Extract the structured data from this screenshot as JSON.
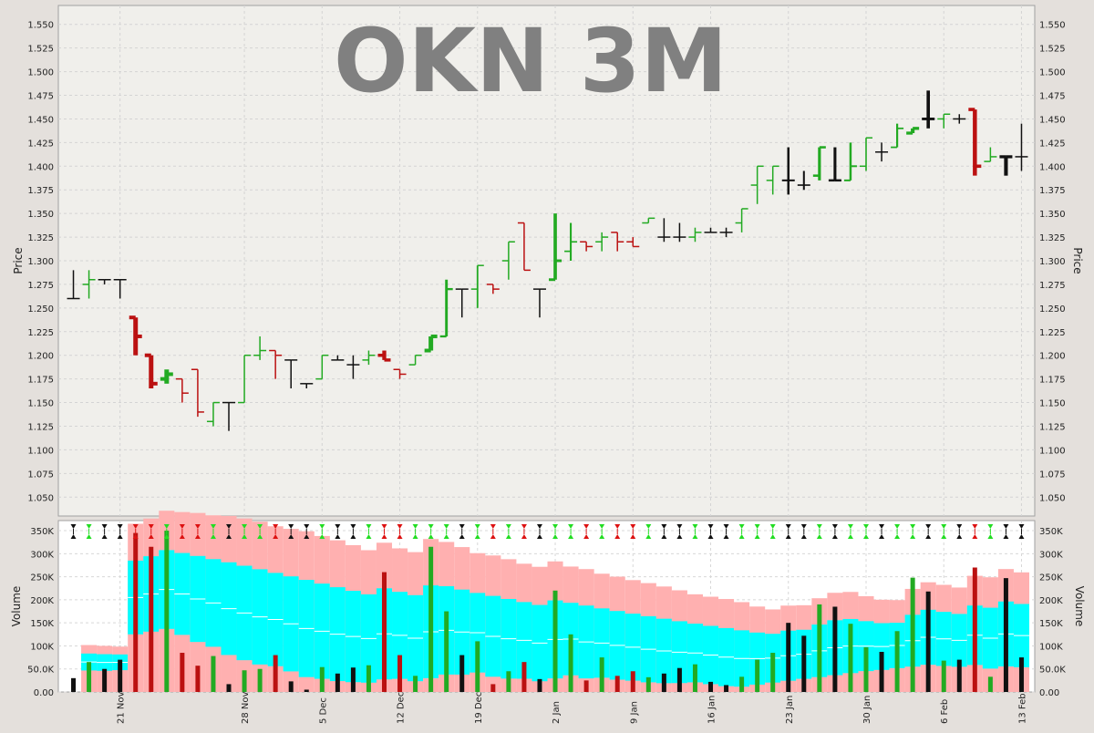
{
  "chart_data": {
    "type": "ohlc",
    "title": "OKN 3M",
    "price_axis": {
      "label": "Price",
      "ylim": [
        1.03,
        1.57
      ],
      "ticks": [
        "1.050",
        "1.075",
        "1.100",
        "1.125",
        "1.150",
        "1.175",
        "1.200",
        "1.225",
        "1.250",
        "1.275",
        "1.300",
        "1.325",
        "1.350",
        "1.375",
        "1.400",
        "1.425",
        "1.450",
        "1.475",
        "1.500",
        "1.525",
        "1.550"
      ]
    },
    "volume_axis": {
      "label": "Volume",
      "ylim": [
        0,
        360000
      ],
      "ticks": [
        "0.00",
        "50.0K",
        "100K",
        "150K",
        "200K",
        "250K",
        "300K",
        "350K"
      ]
    },
    "x_labels": [
      "21 Nov",
      "28 Nov",
      "5 Dec",
      "12 Dec",
      "19 Dec",
      "2 Jan",
      "9 Jan",
      "16 Jan",
      "23 Jan",
      "30 Jan",
      "6 Feb",
      "13 Feb"
    ],
    "colors": {
      "up": "#22aa22",
      "down": "#bb1111",
      "flat": "#111111",
      "band_outer": "#ffb0b0",
      "band_inner": "#00ffff",
      "title": "#808080"
    },
    "bars": [
      {
        "x": 0,
        "o": 1.26,
        "h": 1.29,
        "l": 1.26,
        "c": 1.26,
        "v": 30000
      },
      {
        "x": 1,
        "o": 1.275,
        "h": 1.29,
        "l": 1.26,
        "c": 1.28,
        "v": 65000
      },
      {
        "x": 2,
        "o": 1.28,
        "h": 1.28,
        "l": 1.275,
        "c": 1.28,
        "v": 50000
      },
      {
        "x": 3,
        "o": 1.28,
        "h": 1.28,
        "l": 1.26,
        "c": 1.28,
        "v": 70000
      },
      {
        "x": 4,
        "o": 1.24,
        "h": 1.24,
        "l": 1.2,
        "c": 1.22,
        "v": 345000
      },
      {
        "x": 5,
        "o": 1.2,
        "h": 1.2,
        "l": 1.165,
        "c": 1.17,
        "v": 315000
      },
      {
        "x": 6,
        "o": 1.175,
        "h": 1.185,
        "l": 1.17,
        "c": 1.18,
        "v": 350000
      },
      {
        "x": 7,
        "o": 1.175,
        "h": 1.175,
        "l": 1.15,
        "c": 1.16,
        "v": 85000
      },
      {
        "x": 8,
        "o": 1.185,
        "h": 1.185,
        "l": 1.135,
        "c": 1.14,
        "v": 57000
      },
      {
        "x": 9,
        "o": 1.13,
        "h": 1.15,
        "l": 1.125,
        "c": 1.15,
        "v": 78000
      },
      {
        "x": 10,
        "o": 1.15,
        "h": 1.15,
        "l": 1.12,
        "c": 1.15,
        "v": 17000
      },
      {
        "x": 11,
        "o": 1.15,
        "h": 1.2,
        "l": 1.15,
        "c": 1.2,
        "v": 47000
      },
      {
        "x": 12,
        "o": 1.2,
        "h": 1.22,
        "l": 1.195,
        "c": 1.205,
        "v": 50000
      },
      {
        "x": 13,
        "o": 1.205,
        "h": 1.205,
        "l": 1.175,
        "c": 1.2,
        "v": 80000
      },
      {
        "x": 14,
        "o": 1.195,
        "h": 1.195,
        "l": 1.165,
        "c": 1.195,
        "v": 23000
      },
      {
        "x": 15,
        "o": 1.17,
        "h": 1.17,
        "l": 1.165,
        "c": 1.17,
        "v": 5000
      },
      {
        "x": 16,
        "o": 1.175,
        "h": 1.2,
        "l": 1.175,
        "c": 1.2,
        "v": 54000
      },
      {
        "x": 17,
        "o": 1.195,
        "h": 1.2,
        "l": 1.195,
        "c": 1.195,
        "v": 40000
      },
      {
        "x": 18,
        "o": 1.19,
        "h": 1.2,
        "l": 1.175,
        "c": 1.19,
        "v": 53000
      },
      {
        "x": 19,
        "o": 1.195,
        "h": 1.205,
        "l": 1.19,
        "c": 1.2,
        "v": 58000
      },
      {
        "x": 20,
        "o": 1.2,
        "h": 1.205,
        "l": 1.195,
        "c": 1.195,
        "v": 260000
      },
      {
        "x": 21,
        "o": 1.185,
        "h": 1.185,
        "l": 1.175,
        "c": 1.18,
        "v": 80000
      },
      {
        "x": 22,
        "o": 1.19,
        "h": 1.2,
        "l": 1.19,
        "c": 1.2,
        "v": 35000
      },
      {
        "x": 23,
        "o": 1.205,
        "h": 1.22,
        "l": 1.205,
        "c": 1.22,
        "v": 315000
      },
      {
        "x": 24,
        "o": 1.22,
        "h": 1.28,
        "l": 1.22,
        "c": 1.27,
        "v": 175000
      },
      {
        "x": 25,
        "o": 1.27,
        "h": 1.27,
        "l": 1.24,
        "c": 1.27,
        "v": 80000
      },
      {
        "x": 26,
        "o": 1.27,
        "h": 1.295,
        "l": 1.25,
        "c": 1.295,
        "v": 110000
      },
      {
        "x": 27,
        "o": 1.275,
        "h": 1.275,
        "l": 1.265,
        "c": 1.27,
        "v": 17000
      },
      {
        "x": 28,
        "o": 1.3,
        "h": 1.32,
        "l": 1.28,
        "c": 1.32,
        "v": 45000
      },
      {
        "x": 29,
        "o": 1.34,
        "h": 1.34,
        "l": 1.29,
        "c": 1.29,
        "v": 65000
      },
      {
        "x": 30,
        "o": 1.27,
        "h": 1.27,
        "l": 1.24,
        "c": 1.27,
        "v": 28000
      },
      {
        "x": 31,
        "o": 1.28,
        "h": 1.35,
        "l": 1.28,
        "c": 1.3,
        "v": 220000
      },
      {
        "x": 32,
        "o": 1.31,
        "h": 1.34,
        "l": 1.3,
        "c": 1.32,
        "v": 125000
      },
      {
        "x": 33,
        "o": 1.32,
        "h": 1.32,
        "l": 1.31,
        "c": 1.315,
        "v": 25000
      },
      {
        "x": 34,
        "o": 1.32,
        "h": 1.33,
        "l": 1.31,
        "c": 1.325,
        "v": 75000
      },
      {
        "x": 35,
        "o": 1.33,
        "h": 1.33,
        "l": 1.31,
        "c": 1.32,
        "v": 35000
      },
      {
        "x": 36,
        "o": 1.32,
        "h": 1.325,
        "l": 1.315,
        "c": 1.315,
        "v": 45000
      },
      {
        "x": 37,
        "o": 1.34,
        "h": 1.345,
        "l": 1.34,
        "c": 1.345,
        "v": 32000
      },
      {
        "x": 38,
        "o": 1.325,
        "h": 1.345,
        "l": 1.32,
        "c": 1.325,
        "v": 40000
      },
      {
        "x": 39,
        "o": 1.325,
        "h": 1.34,
        "l": 1.32,
        "c": 1.325,
        "v": 52000
      },
      {
        "x": 40,
        "o": 1.325,
        "h": 1.335,
        "l": 1.32,
        "c": 1.33,
        "v": 60000
      },
      {
        "x": 41,
        "o": 1.33,
        "h": 1.335,
        "l": 1.33,
        "c": 1.33,
        "v": 22000
      },
      {
        "x": 42,
        "o": 1.33,
        "h": 1.335,
        "l": 1.325,
        "c": 1.33,
        "v": 15000
      },
      {
        "x": 43,
        "o": 1.34,
        "h": 1.355,
        "l": 1.33,
        "c": 1.355,
        "v": 33000
      },
      {
        "x": 44,
        "o": 1.38,
        "h": 1.4,
        "l": 1.36,
        "c": 1.4,
        "v": 70000
      },
      {
        "x": 45,
        "o": 1.385,
        "h": 1.4,
        "l": 1.37,
        "c": 1.4,
        "v": 85000
      },
      {
        "x": 46,
        "o": 1.385,
        "h": 1.42,
        "l": 1.37,
        "c": 1.385,
        "v": 150000
      },
      {
        "x": 47,
        "o": 1.38,
        "h": 1.395,
        "l": 1.375,
        "c": 1.38,
        "v": 122000
      },
      {
        "x": 48,
        "o": 1.39,
        "h": 1.42,
        "l": 1.385,
        "c": 1.42,
        "v": 190000
      },
      {
        "x": 49,
        "o": 1.385,
        "h": 1.42,
        "l": 1.385,
        "c": 1.385,
        "v": 185000
      },
      {
        "x": 50,
        "o": 1.385,
        "h": 1.425,
        "l": 1.385,
        "c": 1.4,
        "v": 148000
      },
      {
        "x": 51,
        "o": 1.4,
        "h": 1.43,
        "l": 1.395,
        "c": 1.43,
        "v": 97000
      },
      {
        "x": 52,
        "o": 1.415,
        "h": 1.425,
        "l": 1.405,
        "c": 1.415,
        "v": 87000
      },
      {
        "x": 53,
        "o": 1.42,
        "h": 1.445,
        "l": 1.42,
        "c": 1.44,
        "v": 132000
      },
      {
        "x": 54,
        "o": 1.435,
        "h": 1.44,
        "l": 1.435,
        "c": 1.44,
        "v": 248000
      },
      {
        "x": 55,
        "o": 1.45,
        "h": 1.48,
        "l": 1.44,
        "c": 1.45,
        "v": 218000
      },
      {
        "x": 56,
        "o": 1.45,
        "h": 1.455,
        "l": 1.44,
        "c": 1.455,
        "v": 68000
      },
      {
        "x": 57,
        "o": 1.45,
        "h": 1.455,
        "l": 1.445,
        "c": 1.45,
        "v": 70000
      },
      {
        "x": 58,
        "o": 1.46,
        "h": 1.46,
        "l": 1.39,
        "c": 1.4,
        "v": 270000
      },
      {
        "x": 59,
        "o": 1.405,
        "h": 1.42,
        "l": 1.405,
        "c": 1.41,
        "v": 33000
      },
      {
        "x": 60,
        "o": 1.41,
        "h": 1.41,
        "l": 1.39,
        "c": 1.41,
        "v": 247000
      },
      {
        "x": 61,
        "o": 1.41,
        "h": 1.445,
        "l": 1.395,
        "c": 1.41,
        "v": 75000
      }
    ],
    "label_positions": [
      3,
      11,
      16,
      21,
      26,
      31,
      36,
      41,
      46,
      51,
      56,
      61
    ]
  }
}
